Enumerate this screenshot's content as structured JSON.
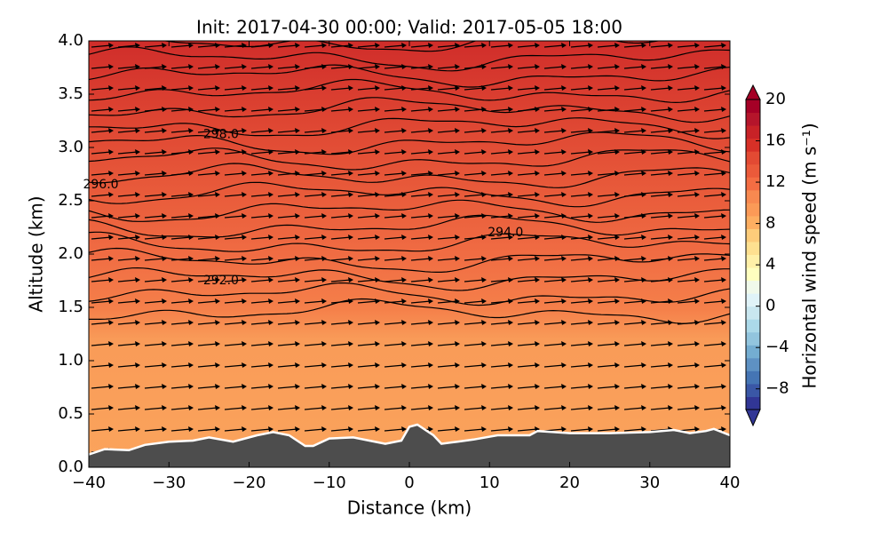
{
  "chart_data": {
    "type": "contour",
    "title": "Init: 2017-04-30 00:00; Valid: 2017-05-05 18:00",
    "xlabel": "Distance (km)",
    "ylabel": "Altitude (km)",
    "xlim": [
      -40,
      40
    ],
    "xticks": [
      {
        "value": -40,
        "label": "−40"
      },
      {
        "value": -30,
        "label": "−30"
      },
      {
        "value": -20,
        "label": "−20"
      },
      {
        "value": -10,
        "label": "−10"
      },
      0,
      10,
      20,
      30,
      40
    ],
    "ylim": [
      0,
      4
    ],
    "yticks": [
      {
        "value": 0,
        "label": "0.0"
      },
      {
        "value": 0.5,
        "label": "0.5"
      },
      {
        "value": 1,
        "label": "1.0"
      },
      {
        "value": 1.5,
        "label": "1.5"
      },
      {
        "value": 2,
        "label": "2.0"
      },
      {
        "value": 2.5,
        "label": "2.5"
      },
      {
        "value": 3,
        "label": "3.0"
      },
      {
        "value": 3.5,
        "label": "3.5"
      },
      {
        "value": 4,
        "label": "4.0"
      }
    ],
    "terrain": {
      "color": "#4d4d4d",
      "x": [
        -40,
        -38,
        -35,
        -33,
        -30,
        -27,
        -25,
        -22,
        -19,
        -17,
        -15,
        -13,
        -12,
        -10,
        -7,
        -5,
        -3,
        -1,
        0,
        1,
        3,
        4,
        6,
        8,
        11,
        13,
        15,
        16,
        18,
        20,
        25,
        30,
        33,
        35,
        37,
        38,
        40
      ],
      "values": [
        0.12,
        0.17,
        0.16,
        0.21,
        0.24,
        0.25,
        0.28,
        0.24,
        0.3,
        0.33,
        0.3,
        0.2,
        0.2,
        0.27,
        0.28,
        0.25,
        0.22,
        0.25,
        0.38,
        0.4,
        0.3,
        0.22,
        0.24,
        0.26,
        0.3,
        0.3,
        0.3,
        0.34,
        0.33,
        0.32,
        0.32,
        0.33,
        0.35,
        0.32,
        0.34,
        0.36,
        0.3
      ]
    },
    "contour_labels": [
      {
        "text": "298.0",
        "x": -23.5,
        "y": 3.12
      },
      {
        "text": "296.0",
        "x": -38.5,
        "y": 2.65
      },
      {
        "text": "294.0",
        "x": 12,
        "y": 2.2
      },
      {
        "text": "292.0",
        "x": -23.5,
        "y": 1.75
      }
    ],
    "colorbar": {
      "label": "Horizontal wind speed (m s⁻¹)",
      "lim": [
        -10,
        20
      ],
      "ticks": [
        {
          "value": -8,
          "label": "−8"
        },
        {
          "value": -4,
          "label": "−4"
        },
        0,
        4,
        8,
        12,
        16,
        20
      ],
      "colors": [
        "#313695",
        "#3a57a6",
        "#4575b4",
        "#5e91c3",
        "#74add1",
        "#92c5de",
        "#abd9e9",
        "#c9e7f0",
        "#e0f3f8",
        "#f0f9ea",
        "#ffffbf",
        "#fff0a8",
        "#fee090",
        "#fdcc7a",
        "#fdae61",
        "#fb9a57",
        "#f88950",
        "#f46d43",
        "#eb5a3a",
        "#e34a33",
        "#d73027",
        "#c82227",
        "#b5152b",
        "#a50026"
      ]
    }
  }
}
